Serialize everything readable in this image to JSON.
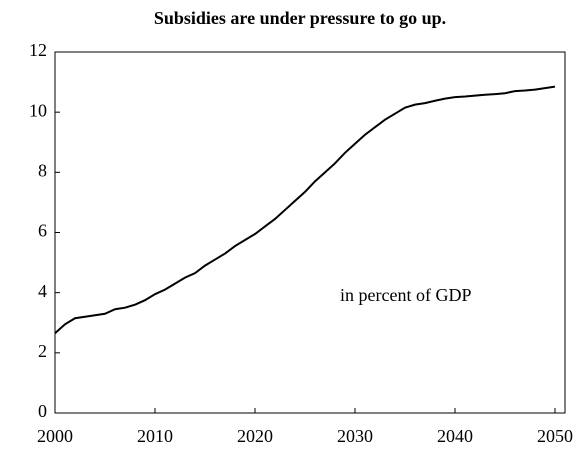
{
  "chart_data": {
    "type": "line",
    "title": "Subsidies are under pressure to go up.",
    "annotation": "in percent of GDP",
    "x": [
      2000,
      2001,
      2002,
      2003,
      2004,
      2005,
      2006,
      2007,
      2008,
      2009,
      2010,
      2011,
      2012,
      2013,
      2014,
      2015,
      2016,
      2017,
      2018,
      2019,
      2020,
      2021,
      2022,
      2023,
      2024,
      2025,
      2026,
      2027,
      2028,
      2029,
      2030,
      2031,
      2032,
      2033,
      2034,
      2035,
      2036,
      2037,
      2038,
      2039,
      2040,
      2041,
      2042,
      2043,
      2044,
      2045,
      2046,
      2047,
      2048,
      2049,
      2050
    ],
    "series": [
      {
        "color": "#000000",
        "values": [
          2.65,
          2.95,
          3.15,
          3.2,
          3.25,
          3.3,
          3.45,
          3.5,
          3.6,
          3.75,
          3.95,
          4.1,
          4.3,
          4.5,
          4.65,
          4.9,
          5.1,
          5.3,
          5.55,
          5.75,
          5.95,
          6.2,
          6.45,
          6.75,
          7.05,
          7.35,
          7.7,
          8.0,
          8.3,
          8.65,
          8.95,
          9.25,
          9.5,
          9.75,
          9.95,
          10.15,
          10.25,
          10.3,
          10.38,
          10.45,
          10.5,
          10.52,
          10.55,
          10.58,
          10.6,
          10.63,
          10.7,
          10.72,
          10.75,
          10.8,
          10.85
        ]
      }
    ],
    "xlim": [
      2000,
      2051
    ],
    "xticks": [
      2000,
      2010,
      2020,
      2030,
      2040,
      2050
    ],
    "ylim": [
      0,
      12
    ],
    "yticks": [
      0,
      2,
      4,
      6,
      8,
      10,
      12
    ],
    "grid": false
  }
}
